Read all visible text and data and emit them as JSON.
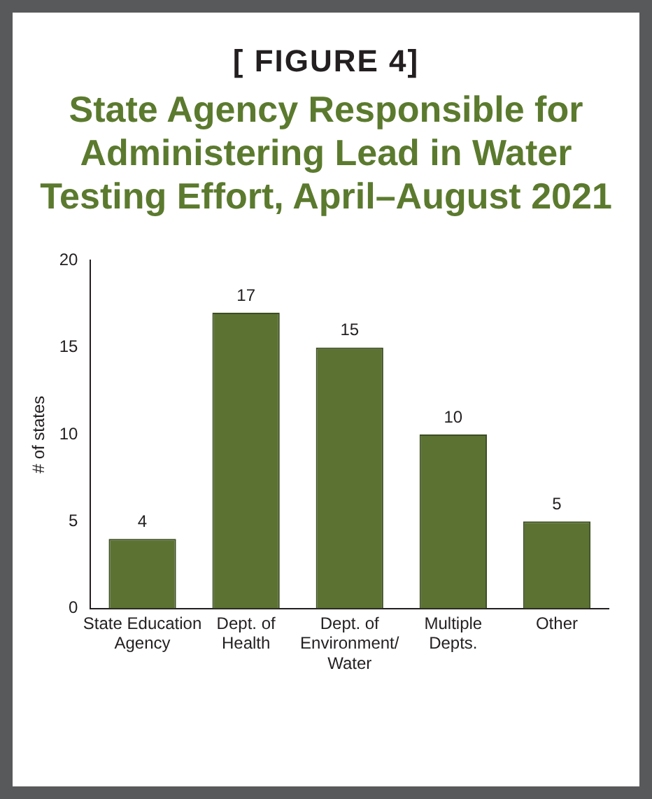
{
  "chart_data": {
    "type": "bar",
    "subtitle": "[ FIGURE 4]",
    "title": "State Agency Responsible for Administering Lead in Water Testing Effort, April–August 2021",
    "ylabel": "# of states",
    "categories": [
      "State Education\nAgency",
      "Dept. of\nHealth",
      "Dept. of\nEnvironment/\nWater",
      "Multiple\nDepts.",
      "Other"
    ],
    "values": [
      4,
      17,
      15,
      10,
      5
    ],
    "color": "#5b7233",
    "ylim": [
      0,
      20
    ],
    "yticks": [
      0,
      5,
      10,
      15,
      20
    ],
    "grid": false,
    "legend": false,
    "data_labels": true
  }
}
